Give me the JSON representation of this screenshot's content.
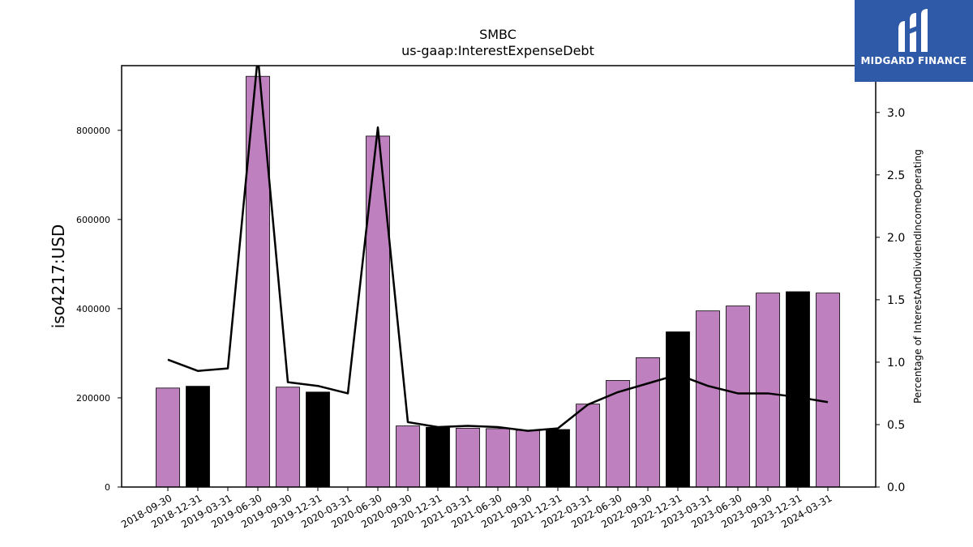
{
  "chart_data": {
    "type": "bar",
    "title": "SMBC",
    "subtitle": "us-gaap:InterestExpenseDebt",
    "ylabel": "iso4217:USD",
    "y2label": "Percentage of InterestAndDividendIncomeOperating",
    "ylim": [
      0,
      945000
    ],
    "y2lim": [
      0,
      3.375
    ],
    "yticks": [
      0,
      200000,
      400000,
      600000,
      800000
    ],
    "y2ticks": [
      "0.0",
      "0.5",
      "1.0",
      "1.5",
      "2.0",
      "2.5",
      "3.0"
    ],
    "categories": [
      "2018-09-30",
      "2018-12-31",
      "2019-03-31",
      "2019-06-30",
      "2019-09-30",
      "2019-12-31",
      "2020-03-31",
      "2020-06-30",
      "2020-09-30",
      "2020-12-31",
      "2021-03-31",
      "2021-06-30",
      "2021-09-30",
      "2021-12-31",
      "2022-03-31",
      "2022-06-30",
      "2022-09-30",
      "2022-12-31",
      "2023-03-31",
      "2023-06-30",
      "2023-09-30",
      "2023-12-31",
      "2024-03-31"
    ],
    "series": [
      {
        "values": [
          222000,
          226000,
          null,
          921000,
          224000,
          213000,
          null,
          787000,
          137000,
          134000,
          132000,
          131000,
          127000,
          129000,
          186000,
          239000,
          290000,
          348000,
          395000,
          406000,
          435000,
          438000,
          435000
        ],
        "colors": [
          "#bf80bf",
          "#000000",
          "#bf80bf",
          "#bf80bf",
          "#bf80bf",
          "#000000",
          "#bf80bf",
          "#bf80bf",
          "#bf80bf",
          "#000000",
          "#bf80bf",
          "#bf80bf",
          "#bf80bf",
          "#000000",
          "#bf80bf",
          "#bf80bf",
          "#bf80bf",
          "#000000",
          "#bf80bf",
          "#bf80bf",
          "#bf80bf",
          "#000000",
          "#bf80bf"
        ]
      },
      {
        "axis": "right",
        "type": "line",
        "color": "#000000",
        "values": [
          1.02,
          0.93,
          0.95,
          3.45,
          0.84,
          0.81,
          0.75,
          2.88,
          0.52,
          0.48,
          0.49,
          0.48,
          0.45,
          0.47,
          0.66,
          0.76,
          0.83,
          0.9,
          0.81,
          0.75,
          0.75,
          0.72,
          0.68
        ]
      }
    ],
    "grid": false,
    "legend": "none"
  },
  "logo": {
    "text": "MIDGARD FINANCE",
    "background": "#2f5aa8"
  }
}
